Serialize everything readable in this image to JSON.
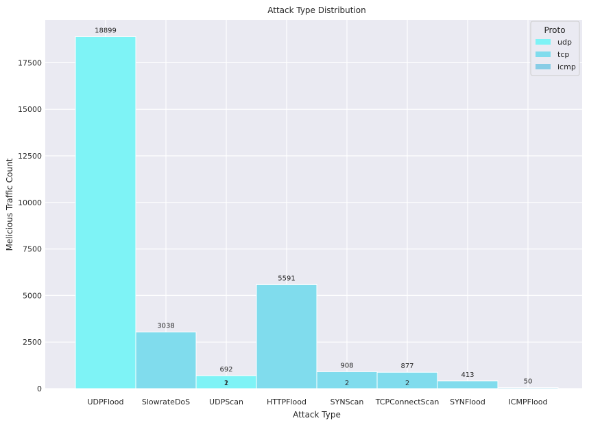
{
  "chart_data": {
    "type": "bar",
    "title": "Attack Type Distribution",
    "xlabel": "Attack Type",
    "ylabel": "Melicious Traffic Count",
    "ylim": [
      0,
      19800
    ],
    "yticks": [
      0,
      2500,
      5000,
      7500,
      10000,
      12500,
      15000,
      17500
    ],
    "ytick_labels": [
      "0",
      "2500",
      "5000",
      "7500",
      "10000",
      "12500",
      "15000",
      "17500"
    ],
    "grid": true,
    "legend": {
      "title": "Proto",
      "placement": "top-right",
      "entries": [
        {
          "name": "udp",
          "color": "#7ef3f6"
        },
        {
          "name": "tcp",
          "color": "#80dced"
        },
        {
          "name": "icmp",
          "color": "#88cde6"
        }
      ]
    },
    "categories": [
      "UDPFlood",
      "SlowrateDoS",
      "UDPScan",
      "HTTPFlood",
      "SYNScan",
      "TCPConnectScan",
      "SYNFlood",
      "ICMPFlood"
    ],
    "bars": [
      {
        "category": "UDPFlood",
        "proto": "udp",
        "value": 18899,
        "label": "18899"
      },
      {
        "category": "SlowrateDoS",
        "proto": "tcp",
        "value": 3038,
        "label": "3038"
      },
      {
        "category": "UDPScan",
        "proto": "udp",
        "value": 692,
        "label": "692"
      },
      {
        "category": "HTTPFlood",
        "proto": "tcp",
        "value": 5591,
        "label": "5591"
      },
      {
        "category": "SYNScan",
        "proto": "tcp",
        "value": 908,
        "label": "908"
      },
      {
        "category": "TCPConnectScan",
        "proto": "tcp",
        "value": 877,
        "label": "877"
      },
      {
        "category": "SYNFlood",
        "proto": "tcp",
        "value": 413,
        "label": "413"
      },
      {
        "category": "ICMPFlood",
        "proto": "icmp",
        "value": 50,
        "label": "50"
      }
    ],
    "inner_labels": [
      {
        "category": "UDPScan",
        "text": "2"
      },
      {
        "category": "UDPScan",
        "text": "1"
      },
      {
        "category": "SYNScan",
        "text": "2"
      },
      {
        "category": "TCPConnectScan",
        "text": "2"
      }
    ],
    "colors": {
      "plot_bg": "#eaeaf2",
      "grid": "#ffffff",
      "udp": "#7ef3f6",
      "tcp": "#80dced",
      "icmp": "#88cde6"
    }
  }
}
